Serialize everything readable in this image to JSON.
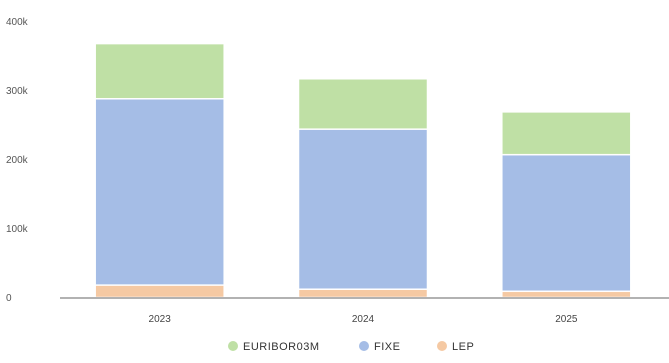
{
  "chart_data": {
    "type": "bar",
    "stacked": true,
    "categories": [
      "2023",
      "2024",
      "2025"
    ],
    "series": [
      {
        "name": "LEP",
        "color": "#f5c9a3",
        "values": [
          18000,
          12000,
          9000
        ]
      },
      {
        "name": "FIXE",
        "color": "#a5bde6",
        "values": [
          270000,
          232000,
          198000
        ]
      },
      {
        "name": "EURIBOR03M",
        "color": "#bfe0a5",
        "values": [
          80000,
          73000,
          62000
        ]
      }
    ],
    "legend_order": [
      "EURIBOR03M",
      "FIXE",
      "LEP"
    ],
    "legend_position": "bottom-center",
    "ylim": [
      0,
      400000
    ],
    "yticks": [
      {
        "value": 0,
        "label": "0"
      },
      {
        "value": 100000,
        "label": "100k"
      },
      {
        "value": 200000,
        "label": "200k"
      },
      {
        "value": 300000,
        "label": "300k"
      },
      {
        "value": 400000,
        "label": "400k"
      }
    ],
    "grid": false
  }
}
